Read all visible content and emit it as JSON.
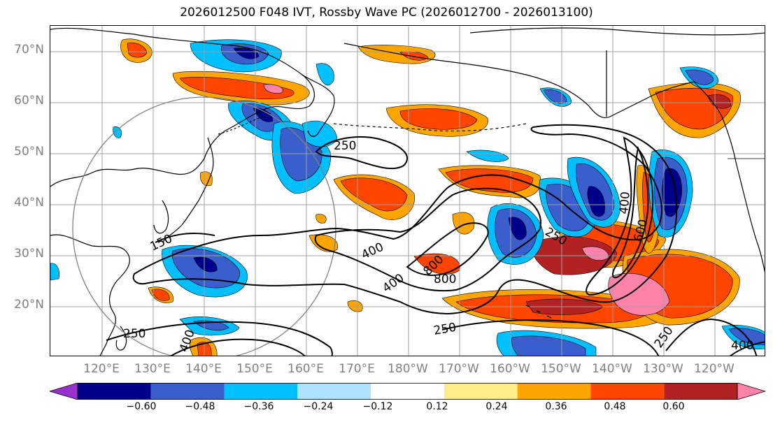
{
  "title": "2026012500 F048 IVT, Rossby Wave PC (2026012700 - 2026013100)",
  "latitude_labels": [
    "70°N",
    "60°N",
    "50°N",
    "40°N",
    "30°N",
    "20°N"
  ],
  "longitude_labels": [
    "120°E",
    "130°E",
    "140°E",
    "150°E",
    "160°E",
    "170°E",
    "180°W",
    "170°W",
    "160°W",
    "150°W",
    "140°W",
    "130°W",
    "120°W"
  ],
  "colorbar": {
    "colors": [
      "#9932cc",
      "#00008b",
      "#3a5fcd",
      "#00bfff",
      "#b0e2ff",
      "#ffffff",
      "#ffec8b",
      "#ffa500",
      "#ff4500",
      "#b22222",
      "#ff82ab"
    ],
    "tick_labels": [
      "−0.60",
      "−0.48",
      "−0.36",
      "−0.24",
      "−0.12",
      "0.12",
      "0.24",
      "0.36",
      "0.48",
      "0.60"
    ]
  },
  "contours": {
    "labels": [
      "250",
      "250",
      "150",
      "400",
      "800",
      "800",
      "400",
      "250",
      "250",
      "250",
      "400",
      "400",
      "400",
      "600",
      "400",
      "250",
      "400"
    ]
  },
  "colors": {
    "grid": "#a0a0a0",
    "coast": "#000000",
    "contour": "#000000",
    "circle": "#808080"
  }
}
